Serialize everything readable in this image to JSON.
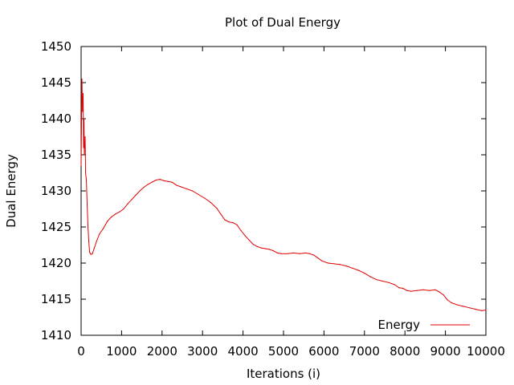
{
  "chart_data": {
    "type": "line",
    "title": "Plot of Dual Energy",
    "xlabel": "Iterations (i)",
    "ylabel": "Dual Energy",
    "xlim": [
      0,
      10000
    ],
    "ylim": [
      1410,
      1450
    ],
    "x_ticks": [
      0,
      1000,
      2000,
      3000,
      4000,
      5000,
      6000,
      7000,
      8000,
      9000,
      10000
    ],
    "y_ticks": [
      1410,
      1415,
      1420,
      1425,
      1430,
      1435,
      1440,
      1445,
      1450
    ],
    "grid": false,
    "legend_position": "bottom-right",
    "series": [
      {
        "name": "Energy",
        "color": "#e00000",
        "points": [
          [
            0,
            1433.5
          ],
          [
            20,
            1445.5
          ],
          [
            35,
            1441
          ],
          [
            50,
            1443.5
          ],
          [
            60,
            1436
          ],
          [
            70,
            1440
          ],
          [
            80,
            1435
          ],
          [
            100,
            1437.5
          ],
          [
            110,
            1432.5
          ],
          [
            130,
            1431.5
          ],
          [
            150,
            1428
          ],
          [
            170,
            1425
          ],
          [
            190,
            1423
          ],
          [
            210,
            1421.5
          ],
          [
            240,
            1421.2
          ],
          [
            280,
            1421.3
          ],
          [
            320,
            1422
          ],
          [
            380,
            1423
          ],
          [
            450,
            1424
          ],
          [
            550,
            1424.8
          ],
          [
            650,
            1425.8
          ],
          [
            750,
            1426.4
          ],
          [
            850,
            1426.8
          ],
          [
            950,
            1427.1
          ],
          [
            1050,
            1427.5
          ],
          [
            1150,
            1428.2
          ],
          [
            1250,
            1428.8
          ],
          [
            1350,
            1429.4
          ],
          [
            1450,
            1430.0
          ],
          [
            1550,
            1430.5
          ],
          [
            1650,
            1430.9
          ],
          [
            1750,
            1431.2
          ],
          [
            1850,
            1431.5
          ],
          [
            1950,
            1431.6
          ],
          [
            2050,
            1431.4
          ],
          [
            2150,
            1431.3
          ],
          [
            2250,
            1431.2
          ],
          [
            2350,
            1430.8
          ],
          [
            2450,
            1430.6
          ],
          [
            2600,
            1430.3
          ],
          [
            2750,
            1430.0
          ],
          [
            2900,
            1429.5
          ],
          [
            3050,
            1429.0
          ],
          [
            3200,
            1428.4
          ],
          [
            3350,
            1427.6
          ],
          [
            3450,
            1426.8
          ],
          [
            3550,
            1426.0
          ],
          [
            3650,
            1425.7
          ],
          [
            3750,
            1425.6
          ],
          [
            3850,
            1425.3
          ],
          [
            3950,
            1424.5
          ],
          [
            4050,
            1423.8
          ],
          [
            4150,
            1423.2
          ],
          [
            4250,
            1422.6
          ],
          [
            4350,
            1422.3
          ],
          [
            4450,
            1422.1
          ],
          [
            4550,
            1422.0
          ],
          [
            4650,
            1421.9
          ],
          [
            4750,
            1421.7
          ],
          [
            4850,
            1421.4
          ],
          [
            4950,
            1421.3
          ],
          [
            5100,
            1421.3
          ],
          [
            5250,
            1421.4
          ],
          [
            5400,
            1421.3
          ],
          [
            5550,
            1421.4
          ],
          [
            5650,
            1421.3
          ],
          [
            5750,
            1421.1
          ],
          [
            5850,
            1420.7
          ],
          [
            5950,
            1420.3
          ],
          [
            6100,
            1420.0
          ],
          [
            6250,
            1419.9
          ],
          [
            6400,
            1419.8
          ],
          [
            6550,
            1419.6
          ],
          [
            6700,
            1419.3
          ],
          [
            6850,
            1419.0
          ],
          [
            7000,
            1418.6
          ],
          [
            7150,
            1418.1
          ],
          [
            7300,
            1417.7
          ],
          [
            7450,
            1417.5
          ],
          [
            7600,
            1417.3
          ],
          [
            7750,
            1417.0
          ],
          [
            7850,
            1416.6
          ],
          [
            7950,
            1416.5
          ],
          [
            8050,
            1416.2
          ],
          [
            8150,
            1416.1
          ],
          [
            8300,
            1416.2
          ],
          [
            8450,
            1416.3
          ],
          [
            8600,
            1416.2
          ],
          [
            8750,
            1416.3
          ],
          [
            8850,
            1416.0
          ],
          [
            8950,
            1415.6
          ],
          [
            9050,
            1414.9
          ],
          [
            9150,
            1414.5
          ],
          [
            9300,
            1414.2
          ],
          [
            9450,
            1414.0
          ],
          [
            9600,
            1413.8
          ],
          [
            9750,
            1413.6
          ],
          [
            9900,
            1413.4
          ],
          [
            10000,
            1413.5
          ]
        ]
      }
    ]
  }
}
